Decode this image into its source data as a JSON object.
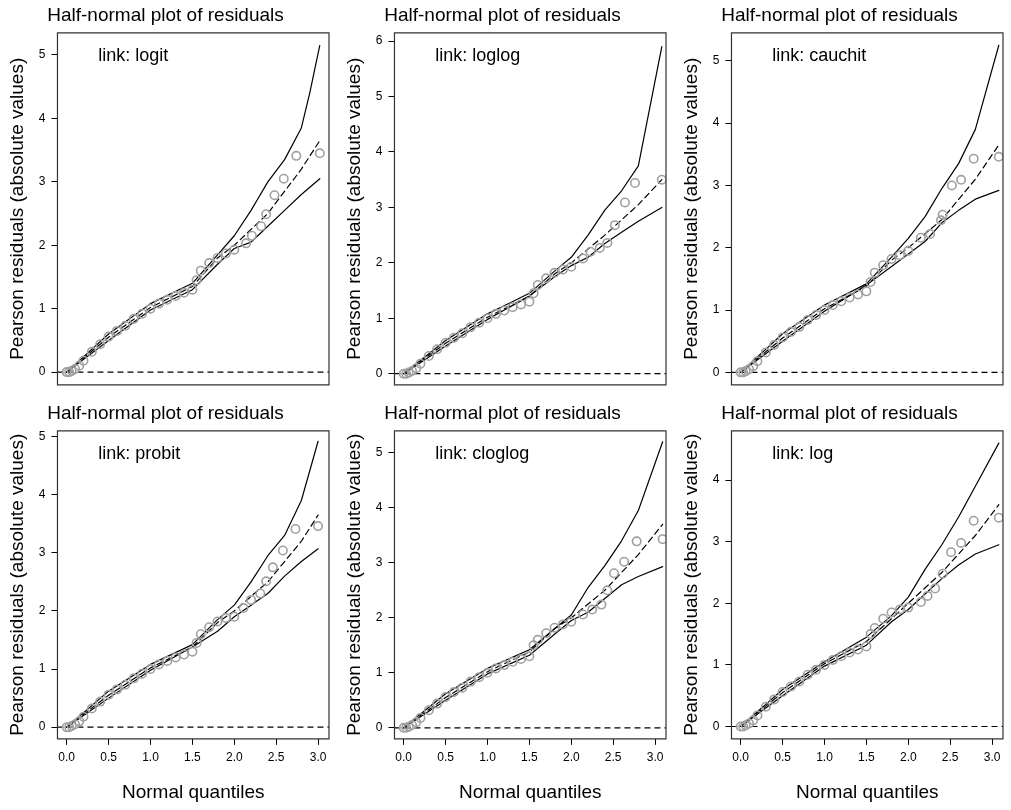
{
  "chart_data": [
    {
      "type": "scatter",
      "title": "Half-normal plot of residuals",
      "ylabel": "Pearson residuals (absolute values)",
      "annotations": [
        "link: logit"
      ],
      "xlim": [
        -0.11,
        3.13
      ],
      "ylim": [
        -0.2,
        5.35
      ],
      "yticks": [
        0,
        1,
        2,
        3,
        4,
        5
      ],
      "tick_labels": "y",
      "ref_lines": [
        {
          "axis": "y",
          "value": 0,
          "line_style": "dashed",
          "color": "#000000"
        }
      ],
      "series": [
        {
          "type": "scatter",
          "color": "#a0a0a0",
          "marker": "circle",
          "x": [
            0,
            0.03,
            0.06,
            0.1,
            0.15,
            0.2,
            0.3,
            0.4,
            0.5,
            0.6,
            0.7,
            0.8,
            0.9,
            1.0,
            1.1,
            1.2,
            1.3,
            1.4,
            1.5,
            1.55,
            1.6,
            1.7,
            1.8,
            1.9,
            2.0,
            2.14,
            2.21,
            2.32,
            2.38,
            2.48,
            2.59,
            2.74,
            3.02
          ],
          "values": [
            0,
            0,
            0.02,
            0.05,
            0.1,
            0.18,
            0.32,
            0.44,
            0.56,
            0.65,
            0.73,
            0.84,
            0.92,
            1.0,
            1.08,
            1.14,
            1.2,
            1.25,
            1.3,
            1.45,
            1.6,
            1.72,
            1.8,
            1.87,
            1.93,
            2.03,
            2.15,
            2.3,
            2.49,
            2.79,
            3.05,
            3.41,
            3.45
          ]
        },
        {
          "type": "line",
          "color": "#000000",
          "line_style": "solid",
          "x": [
            0,
            0.5,
            1.0,
            1.5,
            1.8,
            2.0,
            2.2,
            2.4,
            2.6,
            2.8,
            2.9,
            3.02
          ],
          "values": [
            0,
            0.6,
            1.08,
            1.4,
            1.85,
            2.15,
            2.55,
            3.0,
            3.35,
            3.85,
            4.4,
            5.15
          ]
        },
        {
          "type": "line",
          "color": "#000000",
          "line_style": "solid",
          "x": [
            0,
            0.5,
            1.0,
            1.5,
            1.8,
            2.0,
            2.2,
            2.4,
            2.6,
            2.8,
            3.02
          ],
          "values": [
            0,
            0.5,
            0.98,
            1.3,
            1.7,
            1.95,
            2.05,
            2.3,
            2.55,
            2.8,
            3.05
          ]
        },
        {
          "type": "line",
          "color": "#000000",
          "line_style": "dashed",
          "x": [
            0,
            0.5,
            1.0,
            1.5,
            1.8,
            2.0,
            2.4,
            2.8,
            3.02
          ],
          "values": [
            0,
            0.55,
            1.02,
            1.35,
            1.8,
            2.0,
            2.5,
            3.2,
            3.65
          ]
        }
      ]
    },
    {
      "type": "scatter",
      "title": "Half-normal plot of residuals",
      "ylabel": "Pearson residuals (absolute values)",
      "annotations": [
        "link: loglog"
      ],
      "xlim": [
        -0.11,
        3.13
      ],
      "ylim": [
        -0.2,
        6.15
      ],
      "yticks": [
        0,
        1,
        2,
        3,
        4,
        5,
        6
      ],
      "tick_labels": "y",
      "ref_lines": [
        {
          "axis": "y",
          "value": 0,
          "line_style": "dashed",
          "color": "#000000"
        }
      ],
      "series": [
        {
          "type": "scatter",
          "color": "#a0a0a0",
          "marker": "circle",
          "x": [
            0,
            0.03,
            0.06,
            0.1,
            0.15,
            0.2,
            0.3,
            0.4,
            0.5,
            0.6,
            0.7,
            0.8,
            0.9,
            1.0,
            1.1,
            1.2,
            1.3,
            1.4,
            1.5,
            1.55,
            1.6,
            1.7,
            1.8,
            1.9,
            2.0,
            2.14,
            2.23,
            2.34,
            2.43,
            2.52,
            2.64,
            2.76,
            3.08
          ],
          "values": [
            0,
            0,
            0.02,
            0.05,
            0.1,
            0.18,
            0.32,
            0.44,
            0.56,
            0.65,
            0.73,
            0.84,
            0.92,
            1.0,
            1.08,
            1.14,
            1.2,
            1.25,
            1.3,
            1.45,
            1.6,
            1.72,
            1.82,
            1.88,
            1.93,
            2.08,
            2.2,
            2.27,
            2.36,
            2.68,
            3.09,
            3.44,
            3.5
          ]
        },
        {
          "type": "line",
          "color": "#000000",
          "line_style": "solid",
          "x": [
            0,
            0.5,
            1.0,
            1.5,
            1.8,
            2.0,
            2.2,
            2.4,
            2.6,
            2.8,
            3.08
          ],
          "values": [
            0,
            0.6,
            1.08,
            1.45,
            1.85,
            2.1,
            2.5,
            2.95,
            3.3,
            3.75,
            5.9
          ]
        },
        {
          "type": "line",
          "color": "#000000",
          "line_style": "solid",
          "x": [
            0,
            0.5,
            1.0,
            1.5,
            1.8,
            2.0,
            2.2,
            2.4,
            2.6,
            2.8,
            3.08
          ],
          "values": [
            0,
            0.5,
            0.98,
            1.4,
            1.75,
            1.95,
            2.1,
            2.35,
            2.55,
            2.75,
            3.0
          ]
        },
        {
          "type": "line",
          "color": "#000000",
          "line_style": "dashed",
          "x": [
            0,
            0.5,
            1.0,
            1.5,
            1.8,
            2.0,
            2.4,
            2.8,
            3.08
          ],
          "values": [
            0,
            0.55,
            1.02,
            1.4,
            1.8,
            2.0,
            2.5,
            3.05,
            3.5
          ]
        }
      ]
    },
    {
      "type": "scatter",
      "title": "Half-normal plot of residuals",
      "ylabel": "Pearson residuals (absolute values)",
      "annotations": [
        "link: cauchit"
      ],
      "xlim": [
        -0.11,
        3.13
      ],
      "ylim": [
        -0.2,
        5.45
      ],
      "yticks": [
        0,
        1,
        2,
        3,
        4,
        5
      ],
      "tick_labels": "y",
      "ref_lines": [
        {
          "axis": "y",
          "value": 0,
          "line_style": "dashed",
          "color": "#000000"
        }
      ],
      "series": [
        {
          "type": "scatter",
          "color": "#a0a0a0",
          "marker": "circle",
          "x": [
            0,
            0.03,
            0.06,
            0.1,
            0.15,
            0.2,
            0.3,
            0.4,
            0.5,
            0.6,
            0.7,
            0.8,
            0.9,
            1.0,
            1.1,
            1.2,
            1.3,
            1.4,
            1.5,
            1.55,
            1.6,
            1.7,
            1.8,
            1.9,
            2.0,
            2.15,
            2.26,
            2.39,
            2.41,
            2.52,
            2.63,
            2.78,
            3.08
          ],
          "values": [
            0,
            0,
            0.02,
            0.05,
            0.1,
            0.18,
            0.32,
            0.44,
            0.56,
            0.65,
            0.73,
            0.84,
            0.92,
            1.0,
            1.08,
            1.14,
            1.2,
            1.25,
            1.3,
            1.45,
            1.6,
            1.72,
            1.82,
            1.88,
            1.95,
            2.16,
            2.22,
            2.44,
            2.53,
            3.0,
            3.09,
            3.43,
            3.46
          ]
        },
        {
          "type": "line",
          "color": "#000000",
          "line_style": "solid",
          "x": [
            0,
            0.5,
            1.0,
            1.5,
            1.8,
            2.0,
            2.2,
            2.4,
            2.6,
            2.8,
            3.08
          ],
          "values": [
            0,
            0.62,
            1.08,
            1.42,
            1.85,
            2.15,
            2.5,
            2.95,
            3.35,
            3.9,
            5.25
          ]
        },
        {
          "type": "line",
          "color": "#000000",
          "line_style": "solid",
          "x": [
            0,
            0.5,
            1.0,
            1.5,
            1.8,
            2.0,
            2.2,
            2.4,
            2.6,
            2.8,
            3.08
          ],
          "values": [
            0,
            0.5,
            0.98,
            1.4,
            1.7,
            1.9,
            2.1,
            2.4,
            2.6,
            2.78,
            2.92
          ]
        },
        {
          "type": "line",
          "color": "#000000",
          "line_style": "dashed",
          "x": [
            0,
            0.5,
            1.0,
            1.5,
            1.8,
            2.0,
            2.4,
            2.8,
            3.08
          ],
          "values": [
            0,
            0.55,
            1.02,
            1.38,
            1.8,
            2.0,
            2.45,
            3.1,
            3.65
          ]
        }
      ]
    },
    {
      "type": "scatter",
      "title": "Half-normal plot of residuals",
      "xlabel": "Normal quantiles",
      "ylabel": "Pearson residuals (absolute values)",
      "annotations": [
        "link: probit"
      ],
      "xlim": [
        -0.11,
        3.13
      ],
      "ylim": [
        -0.2,
        5.1
      ],
      "xticks": [
        {
          "value": 0,
          "label": "0.0"
        },
        {
          "value": 0.5,
          "label": "0.5"
        },
        {
          "value": 1,
          "label": "1.0"
        },
        {
          "value": 1.5,
          "label": "1.5"
        },
        {
          "value": 2,
          "label": "2.0"
        },
        {
          "value": 2.5,
          "label": "2.5"
        },
        {
          "value": 3,
          "label": "3.0"
        }
      ],
      "yticks": [
        0,
        1,
        2,
        3,
        4,
        5
      ],
      "ref_lines": [
        {
          "axis": "y",
          "value": 0,
          "line_style": "dashed",
          "color": "#000000"
        }
      ],
      "series": [
        {
          "type": "scatter",
          "color": "#a0a0a0",
          "marker": "circle",
          "x": [
            0,
            0.03,
            0.06,
            0.1,
            0.15,
            0.2,
            0.3,
            0.4,
            0.5,
            0.6,
            0.7,
            0.8,
            0.9,
            1.0,
            1.1,
            1.2,
            1.3,
            1.4,
            1.5,
            1.55,
            1.6,
            1.7,
            1.8,
            1.9,
            2.0,
            2.11,
            2.2,
            2.31,
            2.38,
            2.46,
            2.58,
            2.73,
            3.0
          ],
          "values": [
            0,
            0,
            0.02,
            0.05,
            0.1,
            0.18,
            0.32,
            0.44,
            0.56,
            0.65,
            0.73,
            0.84,
            0.92,
            1.0,
            1.08,
            1.14,
            1.2,
            1.25,
            1.3,
            1.45,
            1.6,
            1.72,
            1.82,
            1.88,
            1.9,
            2.05,
            2.19,
            2.3,
            2.51,
            2.75,
            3.04,
            3.41,
            3.46
          ]
        },
        {
          "type": "line",
          "color": "#000000",
          "line_style": "solid",
          "x": [
            0,
            0.5,
            1.0,
            1.5,
            1.8,
            2.0,
            2.2,
            2.4,
            2.6,
            2.8,
            3.0
          ],
          "values": [
            0,
            0.62,
            1.08,
            1.42,
            1.85,
            2.1,
            2.5,
            2.95,
            3.3,
            3.9,
            4.92
          ]
        },
        {
          "type": "line",
          "color": "#000000",
          "line_style": "solid",
          "x": [
            0,
            0.5,
            1.0,
            1.5,
            1.8,
            2.0,
            2.2,
            2.4,
            2.6,
            2.8,
            3.0
          ],
          "values": [
            0,
            0.5,
            0.98,
            1.38,
            1.65,
            1.9,
            2.1,
            2.3,
            2.6,
            2.85,
            3.07
          ]
        },
        {
          "type": "line",
          "color": "#000000",
          "line_style": "dashed",
          "x": [
            0,
            0.5,
            1.0,
            1.5,
            1.8,
            2.0,
            2.4,
            2.8,
            3.0
          ],
          "values": [
            0,
            0.55,
            1.02,
            1.38,
            1.8,
            2.0,
            2.5,
            3.2,
            3.65
          ]
        }
      ]
    },
    {
      "type": "scatter",
      "title": "Half-normal plot of residuals",
      "xlabel": "Normal quantiles",
      "ylabel": "Pearson residuals (absolute values)",
      "annotations": [
        "link: cloglog"
      ],
      "xlim": [
        -0.11,
        3.13
      ],
      "ylim": [
        -0.2,
        5.4
      ],
      "xticks": [
        {
          "value": 0,
          "label": "0.0"
        },
        {
          "value": 0.5,
          "label": "0.5"
        },
        {
          "value": 1,
          "label": "1.0"
        },
        {
          "value": 1.5,
          "label": "1.5"
        },
        {
          "value": 2,
          "label": "2.0"
        },
        {
          "value": 2.5,
          "label": "2.5"
        },
        {
          "value": 3,
          "label": "3.0"
        }
      ],
      "yticks": [
        0,
        1,
        2,
        3,
        4,
        5
      ],
      "ref_lines": [
        {
          "axis": "y",
          "value": 0,
          "line_style": "dashed",
          "color": "#000000"
        }
      ],
      "series": [
        {
          "type": "scatter",
          "color": "#a0a0a0",
          "marker": "circle",
          "x": [
            0,
            0.03,
            0.06,
            0.1,
            0.15,
            0.2,
            0.3,
            0.4,
            0.5,
            0.6,
            0.7,
            0.8,
            0.9,
            1.0,
            1.1,
            1.2,
            1.3,
            1.4,
            1.5,
            1.55,
            1.6,
            1.7,
            1.8,
            1.9,
            2.0,
            2.14,
            2.25,
            2.36,
            2.43,
            2.51,
            2.63,
            2.78,
            3.09
          ],
          "values": [
            0,
            0,
            0.02,
            0.05,
            0.1,
            0.18,
            0.32,
            0.44,
            0.56,
            0.65,
            0.73,
            0.84,
            0.92,
            1.0,
            1.08,
            1.14,
            1.2,
            1.25,
            1.3,
            1.5,
            1.6,
            1.72,
            1.82,
            1.88,
            1.93,
            2.06,
            2.15,
            2.24,
            2.5,
            2.81,
            3.02,
            3.39,
            3.43
          ]
        },
        {
          "type": "line",
          "color": "#000000",
          "line_style": "solid",
          "x": [
            0,
            0.5,
            1.0,
            1.5,
            1.8,
            2.0,
            2.2,
            2.4,
            2.6,
            2.8,
            3.09
          ],
          "values": [
            0,
            0.62,
            1.08,
            1.42,
            1.8,
            2.05,
            2.55,
            2.95,
            3.4,
            3.95,
            5.2
          ]
        },
        {
          "type": "line",
          "color": "#000000",
          "line_style": "solid",
          "x": [
            0,
            0.5,
            1.0,
            1.5,
            1.8,
            2.0,
            2.2,
            2.4,
            2.6,
            2.8,
            3.09
          ],
          "values": [
            0,
            0.5,
            0.98,
            1.32,
            1.7,
            1.95,
            2.1,
            2.35,
            2.6,
            2.75,
            2.93
          ]
        },
        {
          "type": "line",
          "color": "#000000",
          "line_style": "dashed",
          "x": [
            0,
            0.5,
            1.0,
            1.5,
            1.8,
            2.0,
            2.4,
            2.8,
            3.09
          ],
          "values": [
            0,
            0.55,
            1.02,
            1.38,
            1.8,
            2.0,
            2.5,
            3.15,
            3.7
          ]
        }
      ]
    },
    {
      "type": "scatter",
      "title": "Half-normal plot of residuals",
      "xlabel": "Normal quantiles",
      "ylabel": "Pearson residuals (absolute values)",
      "annotations": [
        "link: log"
      ],
      "xlim": [
        -0.11,
        3.13
      ],
      "ylim": [
        -0.2,
        4.8
      ],
      "xticks": [
        {
          "value": 0,
          "label": "0.0"
        },
        {
          "value": 0.5,
          "label": "0.5"
        },
        {
          "value": 1,
          "label": "1.0"
        },
        {
          "value": 1.5,
          "label": "1.5"
        },
        {
          "value": 2,
          "label": "2.0"
        },
        {
          "value": 2.5,
          "label": "2.5"
        },
        {
          "value": 3,
          "label": "3.0"
        }
      ],
      "yticks": [
        0,
        1,
        2,
        3,
        4
      ],
      "ref_lines": [
        {
          "axis": "y",
          "value": 0,
          "line_style": "dashed",
          "color": "#000000"
        }
      ],
      "series": [
        {
          "type": "scatter",
          "color": "#a0a0a0",
          "marker": "circle",
          "x": [
            0,
            0.03,
            0.06,
            0.1,
            0.15,
            0.2,
            0.3,
            0.4,
            0.5,
            0.6,
            0.7,
            0.8,
            0.9,
            1.0,
            1.1,
            1.2,
            1.3,
            1.4,
            1.5,
            1.55,
            1.6,
            1.7,
            1.8,
            1.9,
            2.0,
            2.15,
            2.23,
            2.32,
            2.41,
            2.51,
            2.63,
            2.78,
            3.08
          ],
          "values": [
            0,
            0,
            0.02,
            0.05,
            0.1,
            0.18,
            0.32,
            0.44,
            0.56,
            0.65,
            0.73,
            0.84,
            0.92,
            1.0,
            1.08,
            1.14,
            1.2,
            1.25,
            1.3,
            1.5,
            1.6,
            1.75,
            1.85,
            1.9,
            1.93,
            2.02,
            2.12,
            2.24,
            2.48,
            2.83,
            2.98,
            3.34,
            3.39
          ]
        },
        {
          "type": "line",
          "color": "#000000",
          "line_style": "solid",
          "x": [
            0,
            0.5,
            1.0,
            1.5,
            1.8,
            2.0,
            2.2,
            2.4,
            2.6,
            2.8,
            3.08
          ],
          "values": [
            0,
            0.6,
            1.05,
            1.45,
            1.8,
            2.1,
            2.55,
            2.95,
            3.4,
            3.9,
            4.6
          ]
        },
        {
          "type": "line",
          "color": "#000000",
          "line_style": "solid",
          "x": [
            0,
            0.5,
            1.0,
            1.5,
            1.8,
            2.0,
            2.2,
            2.4,
            2.6,
            2.8,
            3.08
          ],
          "values": [
            0,
            0.5,
            0.98,
            1.32,
            1.7,
            1.9,
            2.15,
            2.4,
            2.62,
            2.8,
            2.95
          ]
        },
        {
          "type": "line",
          "color": "#000000",
          "line_style": "dashed",
          "x": [
            0,
            0.5,
            1.0,
            1.5,
            1.8,
            2.0,
            2.4,
            2.8,
            3.08
          ],
          "values": [
            0,
            0.55,
            1.02,
            1.38,
            1.75,
            2.0,
            2.5,
            3.1,
            3.6
          ]
        }
      ]
    }
  ]
}
